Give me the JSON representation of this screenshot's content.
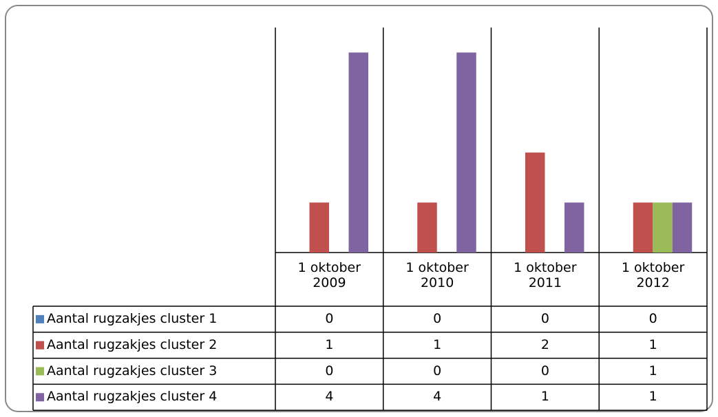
{
  "chart_data": {
    "type": "bar",
    "categories": [
      "1 oktober 2009",
      "1 oktober 2010",
      "1 oktober 2011",
      "1 oktober 2012"
    ],
    "series": [
      {
        "name": "Aantal rugzakjes cluster 1",
        "color": "#4f81bd",
        "values": [
          0,
          0,
          0,
          0
        ]
      },
      {
        "name": "Aantal rugzakjes cluster 2",
        "color": "#c0504d",
        "values": [
          1,
          1,
          2,
          1
        ]
      },
      {
        "name": "Aantal rugzakjes cluster 3",
        "color": "#9bbb59",
        "values": [
          0,
          0,
          0,
          1
        ]
      },
      {
        "name": "Aantal rugzakjes cluster 4",
        "color": "#8064a2",
        "values": [
          4,
          4,
          1,
          1
        ]
      }
    ],
    "ylim": [
      0,
      4.5
    ],
    "data_table": true
  }
}
